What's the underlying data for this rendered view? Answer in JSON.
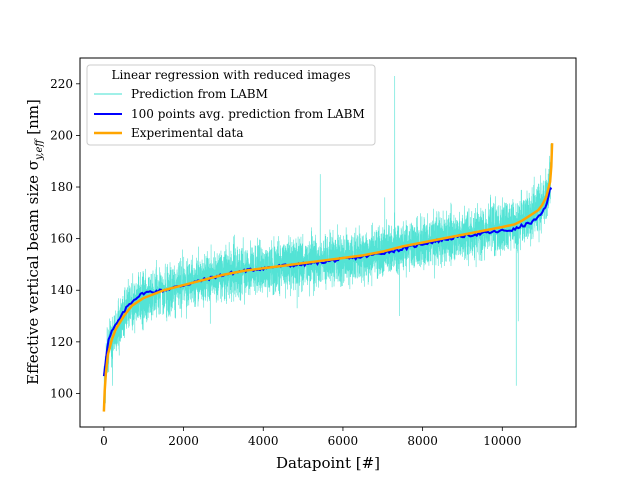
{
  "chart_data": {
    "type": "line",
    "xlabel": "Datapoint [#]",
    "ylabel_main": "Effective vertical beam size σ",
    "ylabel_sub": "y,eff",
    "ylabel_unit": " [nm]",
    "xlim": [
      -600,
      11850
    ],
    "ylim": [
      87,
      230
    ],
    "xticks": [
      0,
      2000,
      4000,
      6000,
      8000,
      10000
    ],
    "yticks": [
      100,
      120,
      140,
      160,
      180,
      200,
      220
    ],
    "legend": {
      "title": "Linear regression with reduced images",
      "position": "upper-left",
      "entries": [
        {
          "label": "Prediction from LABM",
          "color": "#40e0d0"
        },
        {
          "label": "100 points avg. prediction from LABM",
          "color": "#0000ff"
        },
        {
          "label": "Experimental data",
          "color": "#ffa500"
        }
      ]
    },
    "series": [
      {
        "name": "Prediction from LABM",
        "color": "#40e0d0",
        "n_points": 11250,
        "noise_std": 5,
        "spikes": [
          {
            "x": 7300,
            "y": 223
          },
          {
            "x": 5430,
            "y": 185
          },
          {
            "x": 10350,
            "y": 103
          },
          {
            "x": 10400,
            "y": 128
          },
          {
            "x": 2670,
            "y": 127
          },
          {
            "x": 1580,
            "y": 128
          },
          {
            "x": 7050,
            "y": 176
          },
          {
            "x": 9700,
            "y": 176
          },
          {
            "x": 10800,
            "y": 184
          },
          {
            "x": 7420,
            "y": 130
          },
          {
            "x": 4850,
            "y": 133
          },
          {
            "x": 220,
            "y": 103
          }
        ]
      },
      {
        "name": "100 points avg. prediction from LABM",
        "color": "#0000ff",
        "x": [
          0,
          100,
          200,
          400,
          600,
          800,
          1000,
          1500,
          2000,
          2500,
          3000,
          3500,
          4000,
          4500,
          5000,
          5500,
          6000,
          6500,
          7000,
          7500,
          8000,
          8500,
          9000,
          9500,
          10000,
          10300,
          10500,
          10700,
          10900,
          11000,
          11100,
          11200,
          11250
        ],
        "y": [
          107,
          120,
          124,
          129,
          134,
          137,
          139,
          140,
          142,
          144,
          146,
          147.5,
          148.5,
          149.5,
          150,
          151,
          152,
          153,
          154.5,
          156,
          158,
          159.5,
          161,
          162,
          163,
          163.5,
          165,
          166,
          168,
          170,
          173,
          179,
          179
        ]
      },
      {
        "name": "Experimental data",
        "color": "#ffa500",
        "x": [
          0,
          20,
          50,
          100,
          200,
          300,
          500,
          700,
          1000,
          1500,
          2000,
          2500,
          3000,
          3500,
          4000,
          4500,
          5000,
          5500,
          6000,
          6500,
          7000,
          7500,
          8000,
          8500,
          9000,
          9500,
          10000,
          10300,
          10500,
          10700,
          10900,
          11000,
          11100,
          11150,
          11200,
          11230,
          11250
        ],
        "y": [
          93,
          101,
          108,
          115,
          121,
          125,
          130,
          134,
          137,
          140,
          142,
          144,
          146,
          147.5,
          148.5,
          149.5,
          150.5,
          151.5,
          152.5,
          153.5,
          155,
          157,
          158.5,
          160,
          161.5,
          163,
          164.5,
          165.5,
          167,
          169,
          171,
          173,
          176,
          179,
          182,
          188,
          197
        ]
      }
    ]
  }
}
